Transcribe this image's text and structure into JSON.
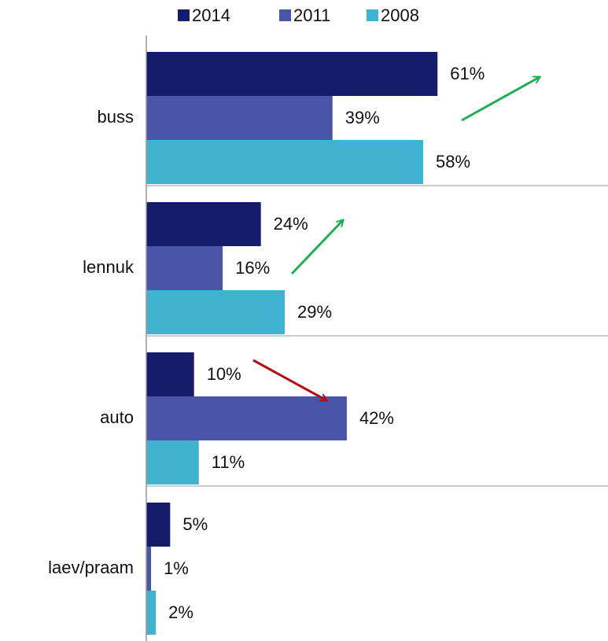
{
  "chart_data": {
    "type": "bar",
    "orientation": "horizontal",
    "categories": [
      "buss",
      "lennuk",
      "auto",
      "laev/praam"
    ],
    "series": [
      {
        "name": "2014",
        "color": "#141c6b",
        "values": [
          61,
          24,
          10,
          5
        ],
        "value_labels": [
          "61%",
          "24%",
          "10%",
          "5%"
        ]
      },
      {
        "name": "2011",
        "color": "#4a55a8",
        "values": [
          39,
          16,
          42,
          1
        ],
        "value_labels": [
          "39%",
          "16%",
          "42%",
          "1%"
        ]
      },
      {
        "name": "2008",
        "color": "#3fb3cf",
        "values": [
          58,
          29,
          11,
          2
        ],
        "value_labels": [
          "58%",
          "29%",
          "11%",
          "2%"
        ]
      }
    ],
    "legend": "top"
  }
}
